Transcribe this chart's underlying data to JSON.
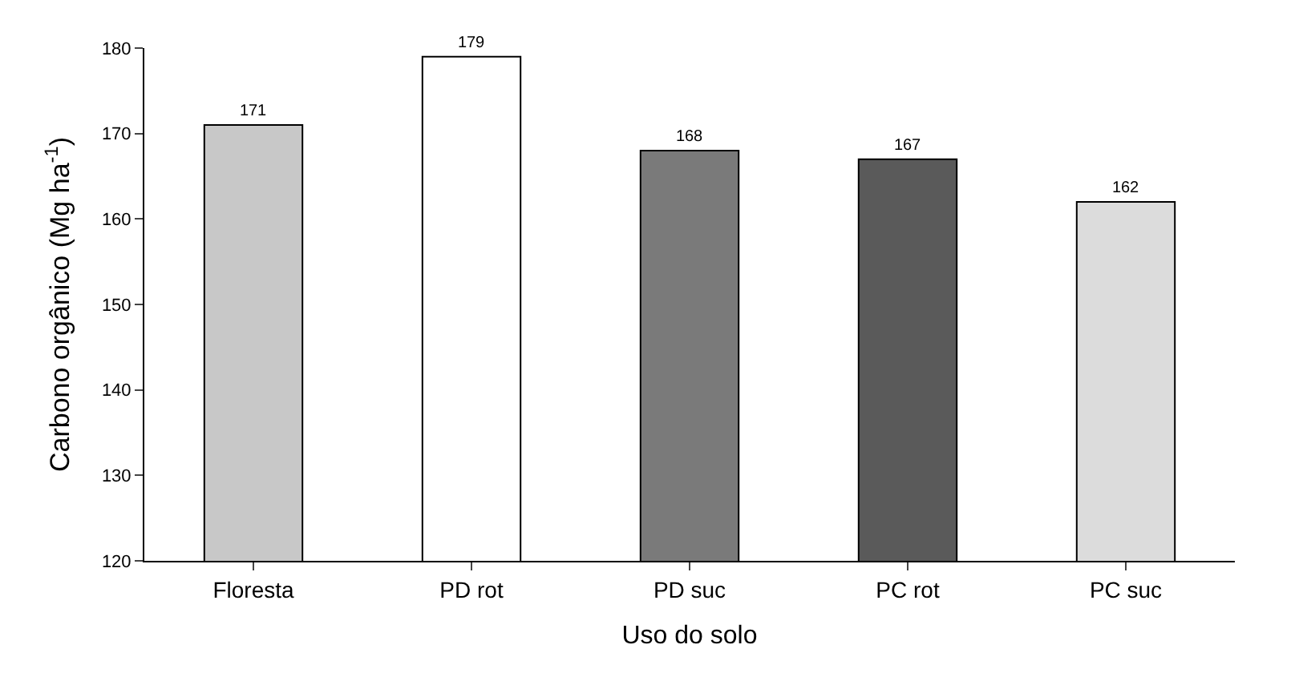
{
  "chart_data": {
    "type": "bar",
    "xlabel": "Uso do solo",
    "ylabel": "Carbono orgânico (Mg ha$^{-1}$)",
    "categories": [
      "Floresta",
      "PD rot",
      "PD suc",
      "PC rot",
      "PC suc"
    ],
    "values": [
      171,
      179,
      168,
      167,
      162
    ],
    "colors": [
      "#c8c8c8",
      "#ffffff",
      "#7a7a7a",
      "#5a5a5a",
      "#dcdcdc"
    ],
    "ylim": [
      120,
      180
    ],
    "yticks": [
      120,
      130,
      140,
      150,
      160,
      170,
      180
    ],
    "data_labels": true
  }
}
